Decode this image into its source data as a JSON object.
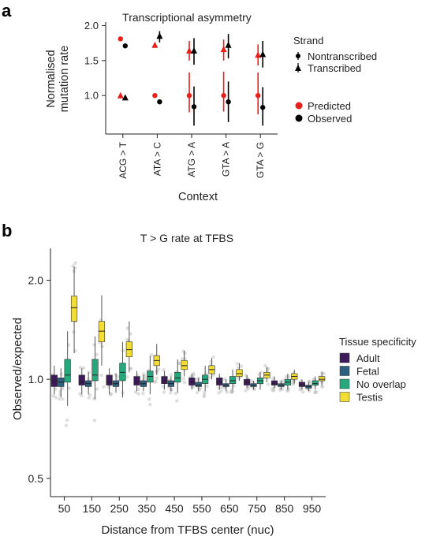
{
  "panel_a": {
    "letter": "a",
    "legend_strand": {
      "title": "Strand",
      "items": [
        "Nontranscribed",
        "Transcribed"
      ]
    },
    "legend_type": {
      "items": [
        "Predicted",
        "Observed"
      ]
    },
    "colors": {
      "predicted": "#e8201c",
      "observed": "#000000"
    }
  },
  "panel_b": {
    "letter": "b",
    "legend": {
      "title": "Tissue specificity",
      "items": [
        "Adult",
        "Fetal",
        "No overlap",
        "Testis"
      ]
    },
    "colors": {
      "Adult": "#3d1a5a",
      "Fetal": "#2e5f7e",
      "No overlap": "#27a77c",
      "Testis": "#f2dd35"
    }
  },
  "chart_data": [
    {
      "type": "scatter",
      "title": "Transcriptional asymmetry",
      "xlabel": "Context",
      "ylabel": "Normalised mutation rate",
      "categories": [
        "ACG > T",
        "ATA > C",
        "ATG > A",
        "GTA > A",
        "GTA > G"
      ],
      "ylim": [
        0.45,
        2.05
      ],
      "yticks": [
        1.0,
        1.5,
        2.0
      ],
      "ytick_labels": [
        "1.0",
        "1.5",
        "2.0"
      ],
      "grid": false,
      "legend_position": "right",
      "series": [
        {
          "name": "Predicted",
          "strand": "Nontranscribed",
          "marker": "circle",
          "color": "#e8201c",
          "values": [
            1.81,
            1.0,
            1.0,
            1.0,
            1.0
          ],
          "low": [
            1.81,
            1.0,
            0.76,
            0.77,
            0.73
          ],
          "high": [
            1.81,
            1.0,
            1.33,
            1.34,
            1.33
          ]
        },
        {
          "name": "Predicted",
          "strand": "Transcribed",
          "marker": "triangle",
          "color": "#e8201c",
          "values": [
            1.0,
            1.72,
            1.64,
            1.66,
            1.58
          ],
          "low": [
            1.0,
            1.69,
            1.5,
            1.5,
            1.43
          ],
          "high": [
            1.0,
            1.75,
            1.78,
            1.8,
            1.73
          ]
        },
        {
          "name": "Observed",
          "strand": "Nontranscribed",
          "marker": "circle",
          "color": "#000000",
          "values": [
            1.71,
            0.91,
            0.84,
            0.91,
            0.83
          ],
          "low": [
            1.71,
            0.91,
            0.57,
            0.62,
            0.57
          ],
          "high": [
            1.71,
            0.91,
            1.13,
            1.2,
            1.12
          ]
        },
        {
          "name": "Observed",
          "strand": "Transcribed",
          "marker": "triangle",
          "color": "#000000",
          "values": [
            0.97,
            1.85,
            1.64,
            1.72,
            1.59
          ],
          "low": [
            0.95,
            1.76,
            1.44,
            1.53,
            1.4
          ],
          "high": [
            0.99,
            1.92,
            1.82,
            1.88,
            1.78
          ]
        }
      ]
    },
    {
      "type": "boxplot",
      "title": "T > G rate at TFBS",
      "xlabel": "Distance from TFBS center (nuc)",
      "ylabel": "Observed/expected",
      "categories": [
        "50",
        "150",
        "250",
        "350",
        "450",
        "550",
        "650",
        "750",
        "850",
        "950"
      ],
      "yscale": "log",
      "ylim": [
        0.44,
        2.5
      ],
      "yticks": [
        0.5,
        1.0,
        2.0
      ],
      "ytick_labels": [
        "0.5",
        "1.0",
        "2.0"
      ],
      "grid": false,
      "legend_position": "right",
      "series": [
        {
          "name": "Adult",
          "boxes": [
            {
              "q1": 0.95,
              "median": 0.99,
              "q3": 1.03,
              "wlow": 0.9,
              "whigh": 1.1
            },
            {
              "q1": 0.96,
              "median": 0.98,
              "q3": 1.03,
              "wlow": 0.9,
              "whigh": 1.08
            },
            {
              "q1": 0.96,
              "median": 0.98,
              "q3": 1.03,
              "wlow": 0.9,
              "whigh": 1.08
            },
            {
              "q1": 0.96,
              "median": 0.98,
              "q3": 1.02,
              "wlow": 0.92,
              "whigh": 1.06
            },
            {
              "q1": 0.97,
              "median": 0.99,
              "q3": 1.02,
              "wlow": 0.93,
              "whigh": 1.06
            },
            {
              "q1": 0.96,
              "median": 0.98,
              "q3": 1.01,
              "wlow": 0.93,
              "whigh": 1.04
            },
            {
              "q1": 0.96,
              "median": 0.98,
              "q3": 1.01,
              "wlow": 0.93,
              "whigh": 1.04
            },
            {
              "q1": 0.96,
              "median": 0.98,
              "q3": 1.0,
              "wlow": 0.94,
              "whigh": 1.03
            },
            {
              "q1": 0.96,
              "median": 0.97,
              "q3": 0.99,
              "wlow": 0.94,
              "whigh": 1.02
            },
            {
              "q1": 0.95,
              "median": 0.96,
              "q3": 0.98,
              "wlow": 0.93,
              "whigh": 1.0
            }
          ]
        },
        {
          "name": "Fetal",
          "boxes": [
            {
              "q1": 0.95,
              "median": 0.98,
              "q3": 1.01,
              "wlow": 0.88,
              "whigh": 1.08
            },
            {
              "q1": 0.95,
              "median": 0.97,
              "q3": 0.99,
              "wlow": 0.9,
              "whigh": 1.05
            },
            {
              "q1": 0.95,
              "median": 0.97,
              "q3": 0.99,
              "wlow": 0.91,
              "whigh": 1.04
            },
            {
              "q1": 0.95,
              "median": 0.97,
              "q3": 0.99,
              "wlow": 0.92,
              "whigh": 1.03
            },
            {
              "q1": 0.95,
              "median": 0.97,
              "q3": 0.99,
              "wlow": 0.92,
              "whigh": 1.02
            },
            {
              "q1": 0.95,
              "median": 0.96,
              "q3": 0.98,
              "wlow": 0.92,
              "whigh": 1.01
            },
            {
              "q1": 0.95,
              "median": 0.96,
              "q3": 0.97,
              "wlow": 0.92,
              "whigh": 1.0
            },
            {
              "q1": 0.95,
              "median": 0.96,
              "q3": 0.97,
              "wlow": 0.93,
              "whigh": 0.99
            },
            {
              "q1": 0.95,
              "median": 0.96,
              "q3": 0.97,
              "wlow": 0.93,
              "whigh": 0.99
            },
            {
              "q1": 0.94,
              "median": 0.95,
              "q3": 0.96,
              "wlow": 0.92,
              "whigh": 0.98
            }
          ]
        },
        {
          "name": "No overlap",
          "boxes": [
            {
              "q1": 0.98,
              "median": 1.03,
              "q3": 1.15,
              "wlow": 0.83,
              "whigh": 1.4
            },
            {
              "q1": 0.99,
              "median": 1.03,
              "q3": 1.15,
              "wlow": 0.87,
              "whigh": 1.35
            },
            {
              "q1": 0.99,
              "median": 1.05,
              "q3": 1.12,
              "wlow": 0.88,
              "whigh": 1.3
            },
            {
              "q1": 0.98,
              "median": 1.02,
              "q3": 1.06,
              "wlow": 0.9,
              "whigh": 1.18
            },
            {
              "q1": 0.98,
              "median": 1.01,
              "q3": 1.05,
              "wlow": 0.91,
              "whigh": 1.15
            },
            {
              "q1": 0.97,
              "median": 1.0,
              "q3": 1.03,
              "wlow": 0.92,
              "whigh": 1.1
            },
            {
              "q1": 0.97,
              "median": 0.99,
              "q3": 1.02,
              "wlow": 0.93,
              "whigh": 1.07
            },
            {
              "q1": 0.97,
              "median": 0.99,
              "q3": 1.01,
              "wlow": 0.93,
              "whigh": 1.05
            },
            {
              "q1": 0.96,
              "median": 0.98,
              "q3": 1.0,
              "wlow": 0.93,
              "whigh": 1.04
            },
            {
              "q1": 0.96,
              "median": 0.97,
              "q3": 0.99,
              "wlow": 0.93,
              "whigh": 1.02
            }
          ]
        },
        {
          "name": "Testis",
          "boxes": [
            {
              "q1": 1.5,
              "median": 1.65,
              "q3": 1.79,
              "wlow": 1.2,
              "whigh": 2.2
            },
            {
              "q1": 1.3,
              "median": 1.4,
              "q3": 1.5,
              "wlow": 1.1,
              "whigh": 1.8
            },
            {
              "q1": 1.17,
              "median": 1.23,
              "q3": 1.3,
              "wlow": 1.05,
              "whigh": 1.5
            },
            {
              "q1": 1.1,
              "median": 1.14,
              "q3": 1.18,
              "wlow": 1.03,
              "whigh": 1.28
            },
            {
              "q1": 1.07,
              "median": 1.1,
              "q3": 1.14,
              "wlow": 1.02,
              "whigh": 1.22
            },
            {
              "q1": 1.04,
              "median": 1.07,
              "q3": 1.1,
              "wlow": 1.0,
              "whigh": 1.16
            },
            {
              "q1": 1.02,
              "median": 1.04,
              "q3": 1.07,
              "wlow": 0.99,
              "whigh": 1.12
            },
            {
              "q1": 1.01,
              "median": 1.03,
              "q3": 1.05,
              "wlow": 0.98,
              "whigh": 1.09
            },
            {
              "q1": 1.0,
              "median": 1.02,
              "q3": 1.04,
              "wlow": 0.97,
              "whigh": 1.07
            },
            {
              "q1": 0.99,
              "median": 1.0,
              "q3": 1.02,
              "wlow": 0.96,
              "whigh": 1.05
            }
          ]
        }
      ]
    }
  ]
}
